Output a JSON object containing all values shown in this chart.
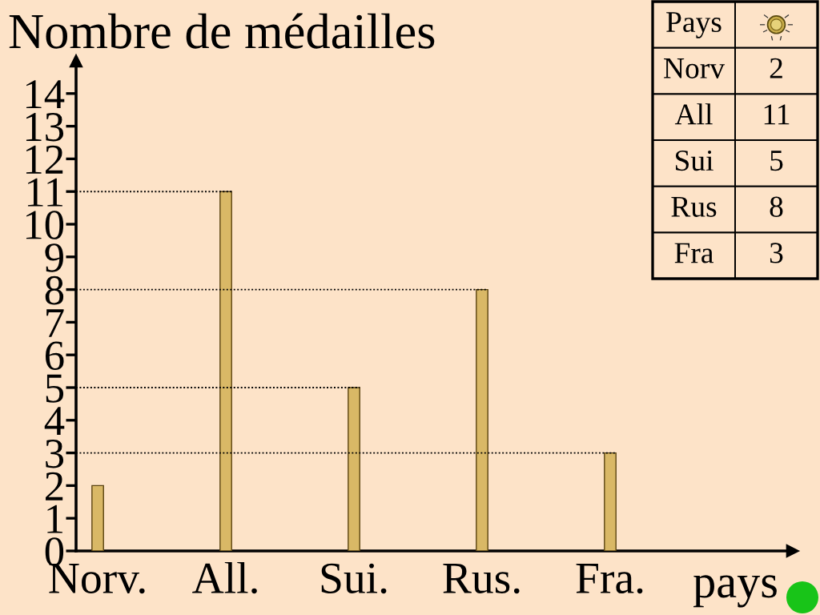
{
  "chart_data": [
    {
      "type": "bar",
      "ylabel": "Nombre de médailles",
      "xlabel": "pays",
      "categories": [
        "Norv.",
        "All.",
        "Sui.",
        "Rus.",
        "Fra."
      ],
      "values": [
        2,
        11,
        5,
        8,
        3
      ],
      "color": "#d9b866",
      "ylim": [
        0,
        15
      ],
      "yticks": [
        0,
        1,
        2,
        3,
        4,
        5,
        6,
        7,
        8,
        9,
        10,
        11,
        12,
        13,
        14
      ],
      "ref_lines": [
        {
          "axis": "y",
          "value": 11,
          "color": "#000000",
          "line_style": "dotted"
        },
        {
          "axis": "y",
          "value": 8,
          "color": "#000000",
          "line_style": "dotted"
        },
        {
          "axis": "y",
          "value": 5,
          "color": "#000000",
          "line_style": "dotted"
        },
        {
          "axis": "y",
          "value": 3,
          "color": "#000000",
          "line_style": "dotted"
        }
      ]
    },
    {
      "type": "other",
      "title": "Pays",
      "categories": [
        "Norv",
        "All",
        "Sui",
        "Rus",
        "Fra"
      ],
      "values": [
        2,
        11,
        5,
        8,
        3
      ],
      "data_labels": true
    }
  ]
}
